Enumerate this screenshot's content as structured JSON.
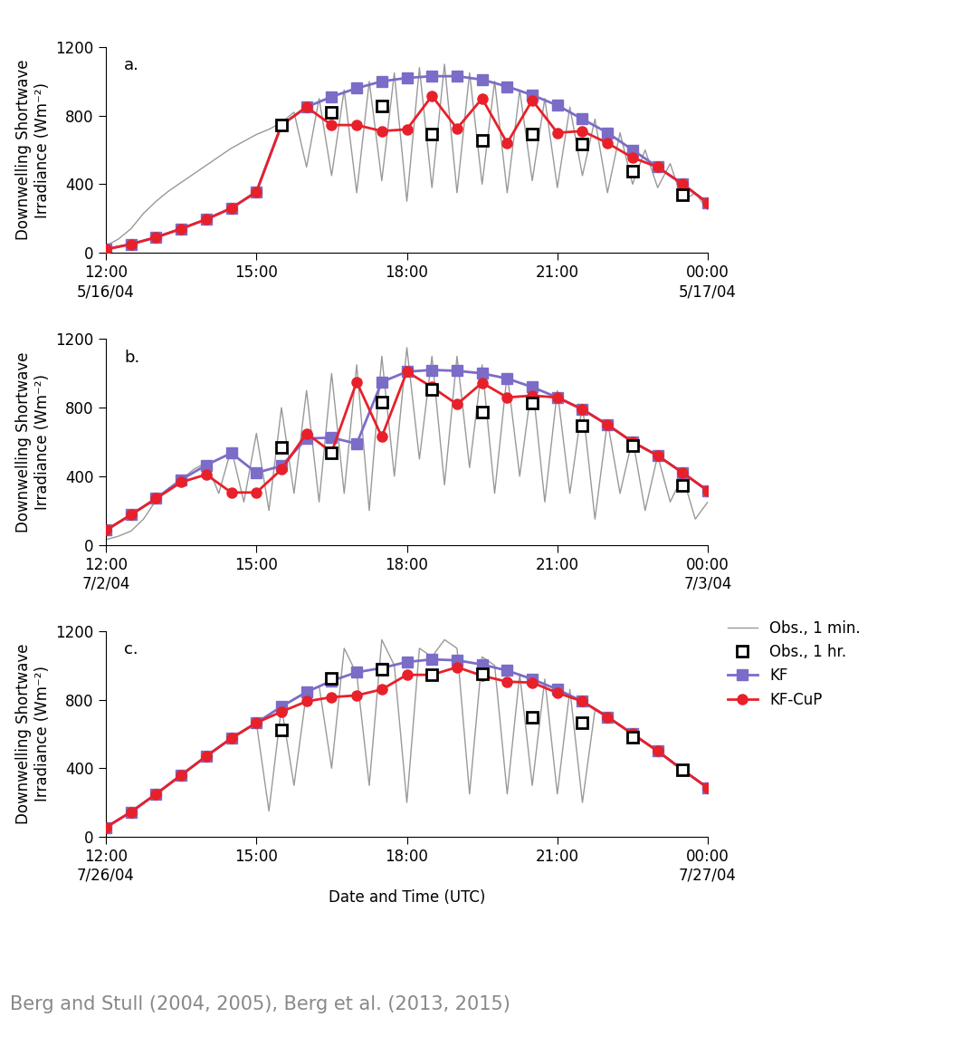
{
  "caption": "Berg and Stull (2004, 2005), Berg et al. (2013, 2015)",
  "chart_data": [
    {
      "type": "line",
      "annotation": "a.",
      "y_label": "Downwelling Shortwave\nIrradiance (Wm⁻²)",
      "xlim": [
        12,
        24
      ],
      "ylim": [
        0,
        1200
      ],
      "yticks": [
        0,
        400,
        800,
        1200
      ],
      "xticks": [
        {
          "value": 12,
          "label": "12:00\n5/16/04"
        },
        {
          "value": 15,
          "label": "15:00"
        },
        {
          "value": 18,
          "label": "18:00"
        },
        {
          "value": 21,
          "label": "21:00"
        },
        {
          "value": 24,
          "label": "00:00\n5/17/04"
        }
      ],
      "x": [
        12,
        12.5,
        13,
        13.5,
        14,
        14.5,
        15,
        15.5,
        16,
        16.5,
        17,
        17.5,
        18,
        18.5,
        19,
        19.5,
        20,
        20.5,
        21,
        21.5,
        22,
        22.5,
        23,
        23.5,
        24
      ],
      "series": [
        {
          "name": "Obs., 1 min.",
          "color": "#999999",
          "marker": "none",
          "line_style": "solid",
          "x": [
            12,
            12.25,
            12.5,
            12.75,
            13,
            13.25,
            13.5,
            13.75,
            14,
            14.25,
            14.5,
            14.75,
            15,
            15.25,
            15.5,
            15.75,
            16,
            16.25,
            16.5,
            16.75,
            17,
            17.25,
            17.5,
            17.75,
            18,
            18.25,
            18.5,
            18.75,
            19,
            19.25,
            19.5,
            19.75,
            20,
            20.25,
            20.5,
            20.75,
            21,
            21.25,
            21.5,
            21.75,
            22,
            22.25,
            22.5,
            22.75,
            23,
            23.25,
            23.5,
            23.75,
            24
          ],
          "values": [
            40,
            80,
            140,
            230,
            300,
            360,
            410,
            460,
            510,
            560,
            610,
            650,
            690,
            720,
            760,
            820,
            500,
            900,
            450,
            950,
            350,
            1000,
            420,
            1050,
            300,
            1080,
            380,
            1100,
            350,
            1050,
            400,
            1000,
            350,
            950,
            420,
            900,
            380,
            850,
            450,
            780,
            350,
            700,
            400,
            600,
            380,
            520,
            300,
            350,
            250
          ]
        },
        {
          "name": "KF",
          "color": "#7b6cc8",
          "marker": "square",
          "line_style": "solid",
          "values": [
            20,
            50,
            90,
            140,
            195,
            260,
            355,
            745,
            850,
            910,
            960,
            1000,
            1020,
            1030,
            1030,
            1010,
            970,
            920,
            860,
            780,
            700,
            600,
            500,
            400,
            290
          ]
        },
        {
          "name": "KF-CuP",
          "color": "#e8202a",
          "marker": "circle",
          "line_style": "solid",
          "values": [
            20,
            50,
            90,
            140,
            195,
            260,
            355,
            745,
            850,
            745,
            745,
            710,
            720,
            915,
            725,
            900,
            640,
            890,
            700,
            710,
            640,
            555,
            500,
            400,
            290
          ]
        },
        {
          "name": "Obs., 1 hr.",
          "color": "#000000",
          "marker": "open_square",
          "line_style": "none",
          "x": [
            15.5,
            16.5,
            17.5,
            18.5,
            19.5,
            20.5,
            21.5,
            22.5,
            23.5
          ],
          "values": [
            745,
            820,
            855,
            690,
            655,
            695,
            635,
            475,
            340
          ]
        }
      ]
    },
    {
      "type": "line",
      "annotation": "b.",
      "y_label": "Downwelling Shortwave\nIrradiance (Wm⁻²)",
      "xlim": [
        12,
        24
      ],
      "ylim": [
        0,
        1200
      ],
      "yticks": [
        0,
        400,
        800,
        1200
      ],
      "xticks": [
        {
          "value": 12,
          "label": "12:00\n7/2/04"
        },
        {
          "value": 15,
          "label": "15:00"
        },
        {
          "value": 18,
          "label": "18:00"
        },
        {
          "value": 21,
          "label": "21:00"
        },
        {
          "value": 24,
          "label": "00:00\n7/3/04"
        }
      ],
      "x": [
        12,
        12.5,
        13,
        13.5,
        14,
        14.5,
        15,
        15.5,
        16,
        16.5,
        17,
        17.5,
        18,
        18.5,
        19,
        19.5,
        20,
        20.5,
        21,
        21.5,
        22,
        22.5,
        23,
        23.5,
        24
      ],
      "series": [
        {
          "name": "Obs., 1 min.",
          "color": "#999999",
          "marker": "none",
          "line_style": "solid",
          "x": [
            12,
            12.25,
            12.5,
            12.75,
            13,
            13.25,
            13.5,
            13.75,
            14,
            14.25,
            14.5,
            14.75,
            15,
            15.25,
            15.5,
            15.75,
            16,
            16.25,
            16.5,
            16.75,
            17,
            17.25,
            17.5,
            17.75,
            18,
            18.25,
            18.5,
            18.75,
            19,
            19.25,
            19.5,
            19.75,
            20,
            20.25,
            20.5,
            20.75,
            21,
            21.25,
            21.5,
            21.75,
            22,
            22.25,
            22.5,
            22.75,
            23,
            23.25,
            23.5,
            23.75,
            24
          ],
          "values": [
            30,
            50,
            80,
            150,
            260,
            330,
            380,
            440,
            480,
            300,
            560,
            250,
            650,
            200,
            800,
            300,
            900,
            250,
            1000,
            300,
            1050,
            200,
            1100,
            400,
            1150,
            500,
            1100,
            350,
            1100,
            450,
            1050,
            300,
            1000,
            400,
            950,
            250,
            900,
            300,
            820,
            150,
            720,
            300,
            620,
            200,
            520,
            250,
            400,
            150,
            250
          ]
        },
        {
          "name": "KF",
          "color": "#7b6cc8",
          "marker": "square",
          "line_style": "solid",
          "values": [
            85,
            175,
            270,
            380,
            465,
            535,
            420,
            460,
            620,
            625,
            590,
            950,
            1010,
            1020,
            1015,
            1000,
            970,
            920,
            860,
            790,
            700,
            600,
            520,
            420,
            315
          ]
        },
        {
          "name": "KF-CuP",
          "color": "#e8202a",
          "marker": "circle",
          "line_style": "solid",
          "values": [
            85,
            175,
            270,
            365,
            410,
            305,
            305,
            440,
            650,
            540,
            950,
            630,
            1010,
            920,
            820,
            945,
            860,
            870,
            860,
            790,
            700,
            600,
            520,
            420,
            315
          ]
        },
        {
          "name": "Obs., 1 hr.",
          "color": "#000000",
          "marker": "open_square",
          "line_style": "none",
          "x": [
            15.5,
            16.5,
            17.5,
            18.5,
            19.5,
            20.5,
            21.5,
            22.5,
            23.5
          ],
          "values": [
            570,
            535,
            835,
            905,
            775,
            825,
            695,
            580,
            345
          ]
        }
      ]
    },
    {
      "type": "line",
      "annotation": "c.",
      "legend": "upper left",
      "x_label": "Date and Time (UTC)",
      "y_label": "Downwelling Shortwave\nIrradiance (Wm⁻²)",
      "xlim": [
        12,
        24
      ],
      "ylim": [
        0,
        1200
      ],
      "yticks": [
        0,
        400,
        800,
        1200
      ],
      "xticks": [
        {
          "value": 12,
          "label": "12:00\n7/26/04"
        },
        {
          "value": 15,
          "label": "15:00"
        },
        {
          "value": 18,
          "label": "18:00"
        },
        {
          "value": 21,
          "label": "21:00"
        },
        {
          "value": 24,
          "label": "00:00\n7/27/04"
        }
      ],
      "x": [
        12,
        12.5,
        13,
        13.5,
        14,
        14.5,
        15,
        15.5,
        16,
        16.5,
        17,
        17.5,
        18,
        18.5,
        19,
        19.5,
        20,
        20.5,
        21,
        21.5,
        22,
        22.5,
        23,
        23.5,
        24
      ],
      "series": [
        {
          "name": "Obs., 1 min.",
          "color": "#999999",
          "marker": "none",
          "line_style": "solid",
          "x": [
            12,
            12.25,
            12.5,
            12.75,
            13,
            13.25,
            13.5,
            13.75,
            14,
            14.25,
            14.5,
            14.75,
            15,
            15.25,
            15.5,
            15.75,
            16,
            16.25,
            16.5,
            16.75,
            17,
            17.25,
            17.5,
            17.75,
            18,
            18.25,
            18.5,
            18.75,
            19,
            19.25,
            19.5,
            19.75,
            20,
            20.25,
            20.5,
            20.75,
            21,
            21.25,
            21.5,
            21.75,
            22,
            22.25,
            22.5,
            22.75,
            23,
            23.25,
            23.5,
            23.75,
            24
          ],
          "values": [
            55,
            100,
            145,
            200,
            250,
            305,
            360,
            415,
            470,
            520,
            575,
            620,
            665,
            150,
            760,
            300,
            845,
            880,
            400,
            1100,
            950,
            300,
            1150,
            1000,
            200,
            1100,
            1050,
            1150,
            1100,
            250,
            1050,
            1000,
            250,
            950,
            300,
            920,
            250,
            860,
            200,
            740,
            700,
            650,
            600,
            550,
            500,
            450,
            390,
            340,
            285
          ]
        },
        {
          "name": "Obs., 1 hr.",
          "color": "#000000",
          "marker": "open_square",
          "line_style": "none",
          "x": [
            15.5,
            16.5,
            17.5,
            18.5,
            19.5,
            20.5,
            21.5,
            22.5,
            23.5
          ],
          "values": [
            625,
            925,
            975,
            945,
            950,
            700,
            665,
            580,
            390
          ]
        },
        {
          "name": "KF",
          "color": "#7b6cc8",
          "marker": "square",
          "line_style": "solid",
          "values": [
            55,
            145,
            250,
            360,
            470,
            575,
            665,
            760,
            845,
            910,
            960,
            985,
            1020,
            1035,
            1030,
            1005,
            970,
            920,
            860,
            790,
            700,
            600,
            500,
            390,
            285
          ]
        },
        {
          "name": "KF-CuP",
          "color": "#e8202a",
          "marker": "circle",
          "line_style": "solid",
          "values": [
            55,
            145,
            250,
            360,
            470,
            575,
            665,
            730,
            790,
            815,
            825,
            860,
            945,
            945,
            990,
            940,
            905,
            900,
            840,
            790,
            700,
            600,
            500,
            390,
            285
          ]
        }
      ]
    }
  ]
}
